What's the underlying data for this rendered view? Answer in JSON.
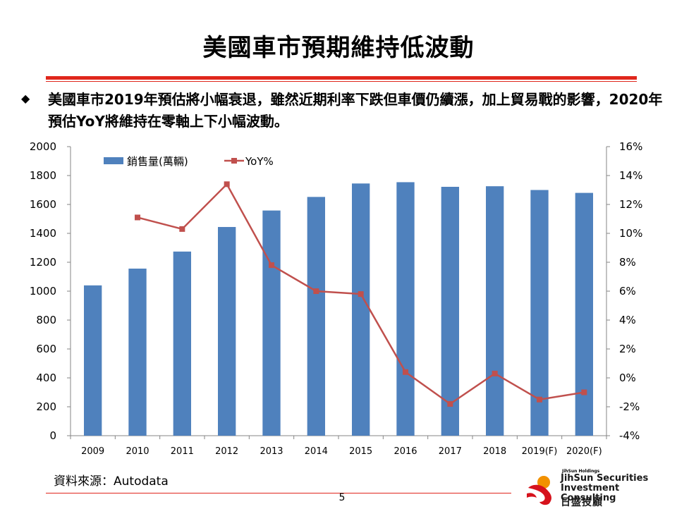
{
  "slide": {
    "title": "美國車市預期維持低波動",
    "bullet_symbol": "◆",
    "bullet_text": "美國車市2019年預估將小幅衰退，雖然近期利率下跌但車價仍續漲，加上貿易戰的影響，2020年預估YoY將維持在零軸上下小幅波動。",
    "source": "資料來源：Autodata",
    "page_number": "5"
  },
  "logo": {
    "small_text": "JihSun Holdings",
    "line1": "JihSun Securities",
    "line2": "Investment Consulting",
    "chinese": "日盛投顧"
  },
  "chart_data": {
    "type": "bar",
    "categories": [
      "2009",
      "2010",
      "2011",
      "2012",
      "2013",
      "2014",
      "2015",
      "2016",
      "2017",
      "2018",
      "2019(F)",
      "2020(F)"
    ],
    "series": [
      {
        "name": "銷售量(萬輛)",
        "type": "bar",
        "axis": "left",
        "color": "#4f81bd",
        "values": [
          1040,
          1156,
          1274,
          1444,
          1558,
          1652,
          1745,
          1754,
          1722,
          1726,
          1700,
          1680
        ]
      },
      {
        "name": "YoY%",
        "type": "line",
        "axis": "right",
        "color": "#c0504d",
        "values": [
          null,
          11.1,
          10.3,
          13.4,
          7.8,
          6.0,
          5.8,
          0.4,
          -1.8,
          0.3,
          -1.5,
          -1.0
        ]
      }
    ],
    "y_left": {
      "min": 0,
      "max": 2000,
      "ticks": [
        "0",
        "200",
        "400",
        "600",
        "800",
        "1000",
        "1200",
        "1400",
        "1600",
        "1800",
        "2000"
      ]
    },
    "y_right": {
      "min": -4,
      "max": 16,
      "ticks": [
        "-4%",
        "-2%",
        "0%",
        "2%",
        "4%",
        "6%",
        "8%",
        "10%",
        "12%",
        "14%",
        "16%"
      ]
    },
    "legend": {
      "position": "top-left",
      "bar_label": "銷售量(萬輛)",
      "line_label": "YoY%"
    },
    "grid": false
  }
}
